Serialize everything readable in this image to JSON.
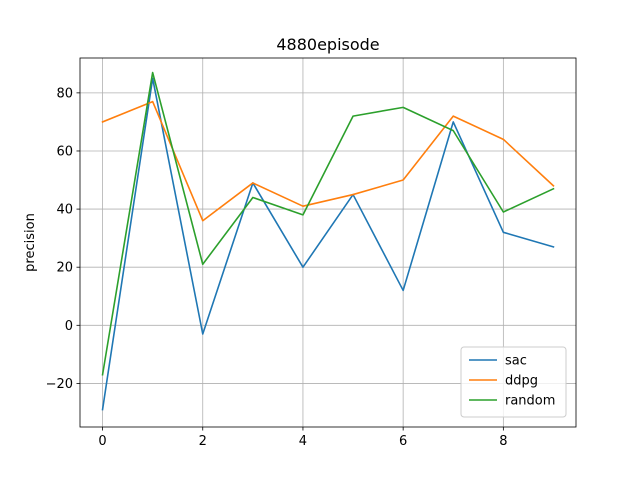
{
  "chart_data": {
    "type": "line",
    "title": "4880episode",
    "xlabel": "",
    "ylabel": "precision",
    "x": [
      0,
      1,
      2,
      3,
      4,
      5,
      6,
      7,
      8,
      9
    ],
    "xlim": [
      -0.45,
      9.45
    ],
    "ylim": [
      -35,
      92
    ],
    "xticks": [
      0,
      2,
      4,
      6,
      8
    ],
    "yticks": [
      -20,
      0,
      20,
      40,
      60,
      80
    ],
    "xtick_labels": [
      "0",
      "2",
      "4",
      "6",
      "8"
    ],
    "ytick_labels": [
      "−20",
      "0",
      "20",
      "40",
      "60",
      "80"
    ],
    "grid": true,
    "legend_position": "lower-right",
    "series": [
      {
        "name": "sac",
        "color": "#1f77b4",
        "values": [
          -29,
          85,
          -3,
          49,
          20,
          45,
          12,
          70,
          32,
          27
        ]
      },
      {
        "name": "ddpg",
        "color": "#ff7f0e",
        "values": [
          70,
          77,
          36,
          49,
          41,
          45,
          50,
          72,
          64,
          48
        ]
      },
      {
        "name": "random",
        "color": "#2ca02c",
        "values": [
          -17,
          87,
          21,
          44,
          38,
          72,
          75,
          67,
          39,
          47
        ]
      }
    ]
  }
}
